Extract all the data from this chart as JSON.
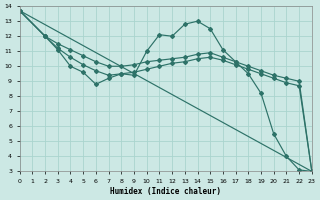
{
  "xlabel": "Humidex (Indice chaleur)",
  "bg_color": "#cce8e4",
  "grid_color": "#aad4ce",
  "line_color": "#2d7268",
  "xlim": [
    0,
    23
  ],
  "ylim": [
    3,
    14
  ],
  "xticks": [
    0,
    1,
    2,
    3,
    4,
    5,
    6,
    7,
    8,
    9,
    10,
    11,
    12,
    13,
    14,
    15,
    16,
    17,
    18,
    19,
    20,
    21,
    22,
    23
  ],
  "yticks": [
    3,
    4,
    5,
    6,
    7,
    8,
    9,
    10,
    11,
    12,
    13,
    14
  ],
  "lines": [
    {
      "x": [
        0,
        23
      ],
      "y": [
        13.7,
        3.0
      ],
      "has_markers": false
    },
    {
      "x": [
        0,
        2,
        3,
        4,
        5,
        6,
        7,
        8,
        9,
        10,
        11,
        12,
        13,
        14,
        15,
        16,
        17,
        18,
        19,
        20,
        21,
        22,
        23
      ],
      "y": [
        13.7,
        12.0,
        11.1,
        10.0,
        9.6,
        8.8,
        9.2,
        9.5,
        9.4,
        11.0,
        12.1,
        12.0,
        12.8,
        13.0,
        12.5,
        11.1,
        10.3,
        9.5,
        8.2,
        5.5,
        4.0,
        3.1,
        3.0
      ],
      "has_markers": true
    },
    {
      "x": [
        0,
        2,
        3,
        4,
        5,
        6,
        7,
        8,
        9,
        10,
        11,
        12,
        13,
        14,
        15,
        16,
        17,
        18,
        19,
        20,
        21,
        22,
        23
      ],
      "y": [
        13.7,
        12.0,
        11.5,
        11.1,
        10.7,
        10.3,
        10.0,
        10.0,
        10.1,
        10.3,
        10.4,
        10.5,
        10.6,
        10.8,
        10.9,
        10.6,
        10.3,
        10.0,
        9.7,
        9.4,
        9.2,
        9.0,
        3.0
      ],
      "has_markers": true
    },
    {
      "x": [
        0,
        2,
        3,
        4,
        5,
        6,
        7,
        8,
        9,
        10,
        11,
        12,
        13,
        14,
        15,
        16,
        17,
        18,
        19,
        20,
        21,
        22,
        23
      ],
      "y": [
        13.7,
        12.0,
        11.2,
        10.6,
        10.1,
        9.7,
        9.4,
        9.5,
        9.6,
        9.8,
        10.0,
        10.2,
        10.3,
        10.5,
        10.6,
        10.4,
        10.1,
        9.8,
        9.5,
        9.2,
        8.9,
        8.7,
        3.0
      ],
      "has_markers": true
    }
  ],
  "marker": "D",
  "markersize": 2.0,
  "linewidth": 0.85
}
